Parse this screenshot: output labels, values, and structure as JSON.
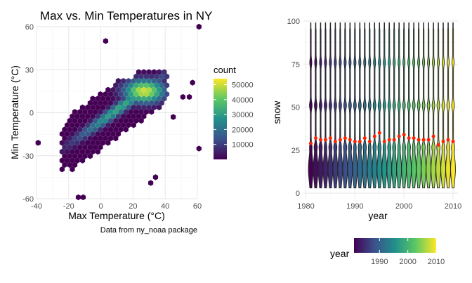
{
  "chart_data": [
    {
      "type": "heatmap",
      "subtype": "hexbin",
      "title": "Max vs. Min Temperatures in NY",
      "xlabel": "Max Temperature (°C)",
      "ylabel": "Min Temperature (°C)",
      "caption": "Data from ny_noaa package",
      "xlim": [
        -40,
        60
      ],
      "ylim": [
        -60,
        60
      ],
      "xticks": [
        -40,
        -20,
        0,
        20,
        40,
        60
      ],
      "yticks": [
        -60,
        -30,
        0,
        30,
        60
      ],
      "grid": true,
      "legend": {
        "title": "count",
        "position": "right",
        "ticks": [
          10000,
          20000,
          30000,
          40000,
          50000
        ],
        "min": 1,
        "max": 54000
      },
      "colormap": [
        "#440154",
        "#3b528b",
        "#21908c",
        "#5dc863",
        "#fde725"
      ],
      "density_ridge": {
        "slope": 0.8,
        "intercept": -6
      },
      "peak": {
        "x": 27,
        "y": 15,
        "count": 54000
      },
      "outliers": [
        {
          "x": 61,
          "y": 60
        },
        {
          "x": 61,
          "y": -25
        },
        {
          "x": 57,
          "y": 21
        },
        {
          "x": 55,
          "y": 11
        },
        {
          "x": 34,
          "y": -45
        },
        {
          "x": 31,
          "y": -49
        },
        {
          "x": -14,
          "y": -59
        },
        {
          "x": -11,
          "y": -59
        },
        {
          "x": 3,
          "y": 50
        },
        {
          "x": -39,
          "y": -21
        },
        {
          "x": 45,
          "y": -3
        },
        {
          "x": 51,
          "y": 11
        }
      ]
    },
    {
      "type": "violin",
      "xlabel": "year",
      "ylabel": "snow",
      "xlim": [
        1979.5,
        2011
      ],
      "ylim": [
        0,
        100
      ],
      "xticks": [
        1980,
        1990,
        2000,
        2010
      ],
      "yticks": [
        0,
        25,
        50,
        75,
        100
      ],
      "grid": true,
      "years": [
        1981,
        1982,
        1983,
        1984,
        1985,
        1986,
        1987,
        1988,
        1989,
        1990,
        1991,
        1992,
        1993,
        1994,
        1995,
        1996,
        1997,
        1998,
        1999,
        2000,
        2001,
        2002,
        2003,
        2004,
        2005,
        2006,
        2007,
        2008,
        2009,
        2010
      ],
      "means": [
        29,
        32,
        31,
        31,
        32,
        30,
        31,
        32,
        31,
        30,
        30,
        32,
        30,
        33,
        35,
        30,
        31,
        31,
        33,
        34,
        32,
        32,
        31,
        31,
        31,
        33,
        28,
        30,
        31,
        30
      ],
      "legend": {
        "title": "year",
        "position": "bottom",
        "ticks": [
          1990,
          2000,
          2010
        ],
        "min": 1981,
        "max": 2010
      },
      "mean_point_color": "#ff2200"
    }
  ]
}
